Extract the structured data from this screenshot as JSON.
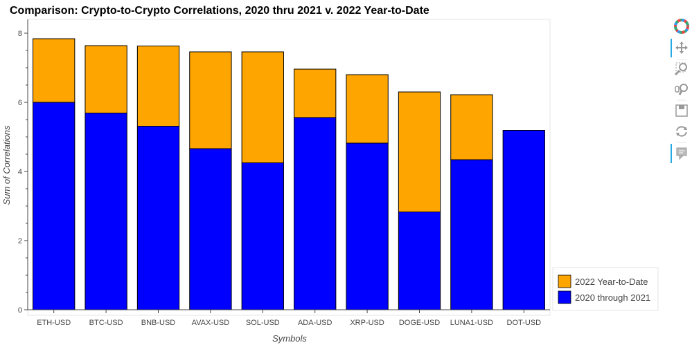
{
  "chart_data": {
    "type": "bar",
    "stacked": true,
    "title": "Comparison: Crypto-to-Crypto Correlations, 2020 thru 2021 v. 2022 Year-to-Date",
    "xlabel": "Symbols",
    "ylabel": "Sum of Correlations",
    "ylim": [
      0,
      8.4
    ],
    "yticks": [
      0,
      2,
      4,
      6,
      8
    ],
    "categories": [
      "ETH-USD",
      "BTC-USD",
      "BNB-USD",
      "AVAX-USD",
      "SOL-USD",
      "ADA-USD",
      "XRP-USD",
      "DOGE-USD",
      "LUNA1-USD",
      "DOT-USD"
    ],
    "series": [
      {
        "name": "2020 through 2021",
        "color": "#0000ff",
        "values": [
          6.0,
          5.69,
          5.31,
          4.66,
          4.25,
          5.56,
          4.82,
          2.83,
          4.34,
          5.19
        ]
      },
      {
        "name": "2022 Year-to-Date",
        "color": "#ffa500",
        "values": [
          1.84,
          1.95,
          2.32,
          2.8,
          3.21,
          1.4,
          1.98,
          3.47,
          1.88,
          0.0
        ]
      }
    ],
    "totals": [
      7.84,
      7.64,
      7.63,
      7.46,
      7.46,
      6.96,
      6.8,
      6.3,
      6.22,
      5.19
    ],
    "legend": {
      "placement": "bottom-right",
      "entries": [
        "2022 Year-to-Date",
        "2020 through 2021"
      ]
    },
    "grid": false
  },
  "toolbar": {
    "tools": [
      "bokeh-logo-icon",
      "pan-icon",
      "box-zoom-icon",
      "wheel-zoom-icon",
      "save-icon",
      "reset-icon",
      "hover-icon"
    ]
  }
}
